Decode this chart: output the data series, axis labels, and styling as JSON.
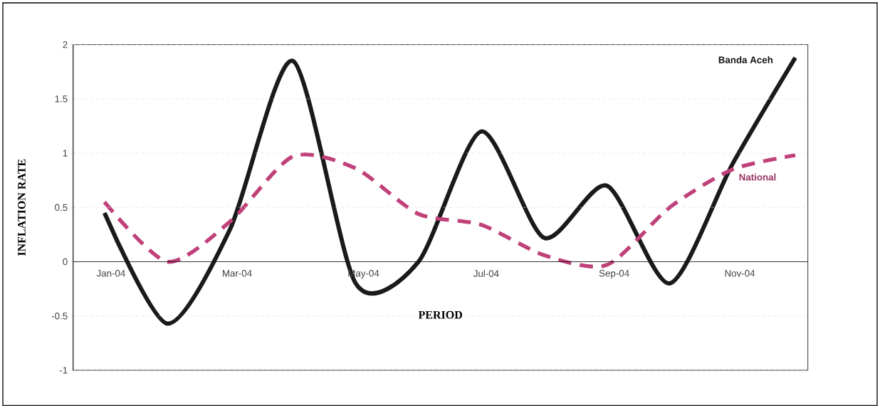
{
  "chart_data": {
    "type": "line",
    "xlabel": "PERIOD",
    "ylabel": "INFLATION RATE",
    "categories": [
      "Jan-04",
      null,
      "Mar-04",
      null,
      "May-04",
      null,
      "Jul-04",
      null,
      "Sep-04",
      null,
      "Nov-04",
      null
    ],
    "series": [
      {
        "name": "Banda Aceh",
        "color": "#1a1a1a",
        "line_style": "solid",
        "values": [
          0.45,
          -0.57,
          0.3,
          1.85,
          -0.2,
          0.0,
          1.2,
          0.22,
          0.7,
          -0.2,
          0.9,
          1.88
        ]
      },
      {
        "name": "National",
        "color": "#c0407a",
        "line_style": "dashed",
        "values": [
          0.55,
          0.0,
          0.37,
          0.97,
          0.86,
          0.44,
          0.34,
          0.06,
          -0.03,
          0.5,
          0.85,
          0.98
        ]
      }
    ],
    "ylim": [
      -1,
      2
    ],
    "yticks": [
      -1,
      -0.5,
      0,
      0.5,
      1,
      1.5,
      2
    ],
    "grid": "y",
    "legend": false,
    "marker": "none"
  }
}
